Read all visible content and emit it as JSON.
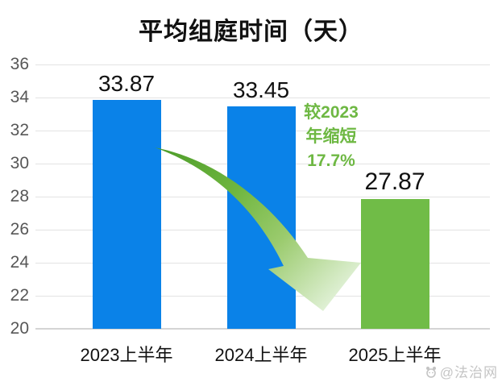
{
  "title": "平均组庭时间（天）",
  "chart_data": {
    "type": "bar",
    "title": "平均组庭时间（天）",
    "categories": [
      "2023上半年",
      "2024上半年",
      "2025上半年"
    ],
    "values": [
      33.87,
      33.45,
      27.87
    ],
    "data_labels": [
      "33.87",
      "33.45",
      "27.87"
    ],
    "bar_colors": [
      "#0a82e8",
      "#0a82e8",
      "#70bc47"
    ],
    "ylim": [
      20,
      36
    ],
    "yticks": [
      36,
      34,
      32,
      30,
      28,
      26,
      24,
      22,
      20
    ],
    "grid": true,
    "legend": "none",
    "annotation": {
      "lines": [
        "较2023",
        "年缩短",
        "17.7%"
      ],
      "meaning": "2025上半年较2023年缩短17.7%",
      "color": "#6eb843",
      "arrow": "curved green arrow from 2023 bar down to 2025 bar"
    }
  },
  "annotation": {
    "line1": "较2023",
    "line2": "年缩短",
    "line3": "17.7%"
  },
  "watermark": {
    "text": "@法治网"
  },
  "colors": {
    "bar_blue": "#0a82e8",
    "bar_green": "#70bc47",
    "annotation_green": "#6eb843",
    "gridline": "#e3e3e3",
    "axis_line": "#d4d4d4",
    "tick_label": "#575757",
    "title_text": "#111111",
    "arrow_dark_green": "#4f9e2c",
    "arrow_light_green": "#dff0d4"
  }
}
